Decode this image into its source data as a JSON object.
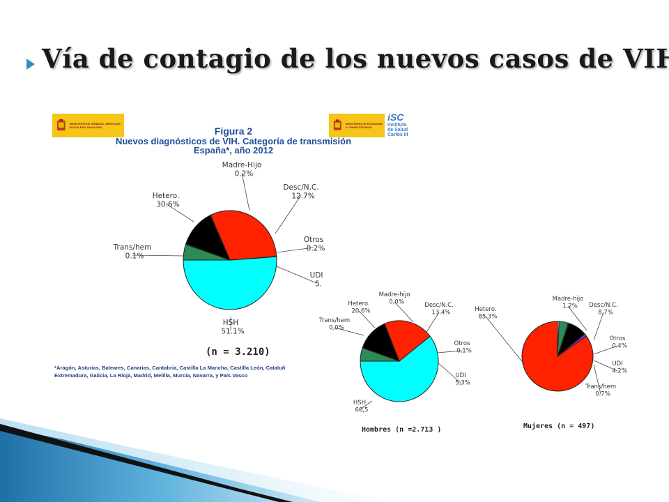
{
  "slide": {
    "title": "Vía de contagio de los nuevos casos de VIH"
  },
  "logos": {
    "left_text": "Ministerio de Sanidad, Servicios Sociales e Igualdad",
    "right_text": "Ministerio de Economía y Competitividad",
    "isc_mark": "iSC",
    "isc_text": "Instituto de Salud Carlos III"
  },
  "figure": {
    "number": "Figura 2",
    "heading_line1": "Nuevos diagnósticos de VIH. Categoría de transmisión",
    "heading_line2": "España*, año 2012",
    "footnote_line1": "*Aragón, Asturias, Baleares, Canarias, Cantabria, Castilla La Mancha, Castilla León, Cataluñ",
    "footnote_line2": "Extremadura, Galicia, La Rioja, Madrid,  Melilla, Murcia, Navarra, y País Vasco"
  },
  "colors": {
    "HSH": "#00ffff",
    "Hetero": "#ff2200",
    "Desc/N.C.": "#000000",
    "UDI": "#2e8b57",
    "Otros": "#2e8b57",
    "Madre-Hijo": "#cccccc",
    "Trans/hem": "#cccccc",
    "Mujeres_Madre-hijo": "#8a2be2"
  },
  "chart_data": [
    {
      "type": "pie",
      "caption": "(n = 3.210)",
      "slices": [
        {
          "label": "HSH",
          "value_text": "51.1%",
          "value": 51.1
        },
        {
          "label": "Trans/hem",
          "value_text": "0.1%",
          "value": 0.1
        },
        {
          "label": "Hetero.",
          "value_text": "30.6%",
          "value": 30.6
        },
        {
          "label": "Madre-Hijo",
          "value_text": "0.2%",
          "value": 0.2
        },
        {
          "label": "Desc/N.C.",
          "value_text": "12.7%",
          "value": 12.7
        },
        {
          "label": "Otros",
          "value_text": "0.2%",
          "value": 0.2
        },
        {
          "label": "UDI",
          "value_text": "5.",
          "value": 5.1
        }
      ]
    },
    {
      "type": "pie",
      "caption": "Hombres (n =2.713 )",
      "slices": [
        {
          "label": "HSH",
          "value_text": "60,5",
          "value": 60.5
        },
        {
          "label": "Trans/hem",
          "value_text": "0,0%",
          "value": 0.0
        },
        {
          "label": "Hetero.",
          "value_text": "20,6%",
          "value": 20.6
        },
        {
          "label": "Madre-hijo",
          "value_text": "0,0%",
          "value": 0.0
        },
        {
          "label": "Desc/N.C.",
          "value_text": "13,4%",
          "value": 13.4
        },
        {
          "label": "Otros",
          "value_text": "0,1%",
          "value": 0.1
        },
        {
          "label": "UDI",
          "value_text": "5,3%",
          "value": 5.3
        }
      ]
    },
    {
      "type": "pie",
      "caption": "Mujeres (n = 497)",
      "slices": [
        {
          "label": "Hetero.",
          "value_text": "85.3%",
          "value": 85.3
        },
        {
          "label": "Madre-hijo",
          "value_text": "1.2%",
          "value": 1.2
        },
        {
          "label": "Desc/N.C.",
          "value_text": "8,7%",
          "value": 8.7
        },
        {
          "label": "Otros",
          "value_text": "0.4%",
          "value": 0.4
        },
        {
          "label": "UDI",
          "value_text": "4.2%",
          "value": 4.2
        },
        {
          "label": "Trans/hem",
          "value_text": "0.7%",
          "value": 0.7
        }
      ]
    }
  ]
}
